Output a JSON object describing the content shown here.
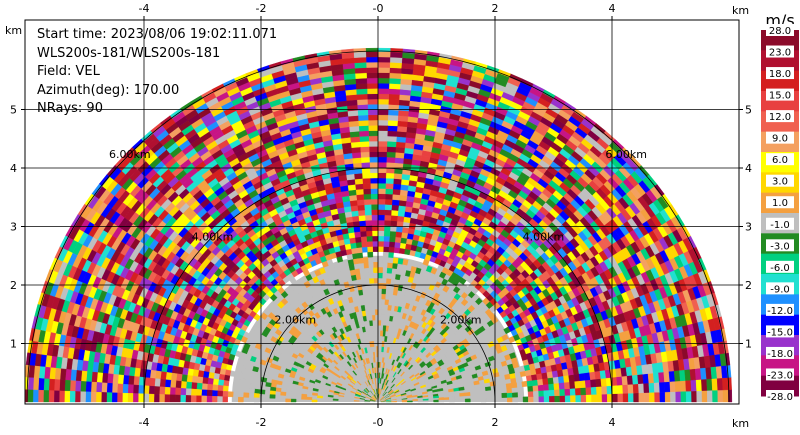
{
  "info": {
    "start_time": "Start time: 2023/08/06 19:02:11.071",
    "instrument": "WLS200s-181/WLS200s-181",
    "field": "Field: VEL",
    "azimuth": "Azimuth(deg): 170.00",
    "nrays": "NRays: 90"
  },
  "chart_data": {
    "type": "heatmap",
    "title": "",
    "xlabel": "km",
    "ylabel": "km",
    "x_ticks": [
      -4,
      -2,
      0,
      2,
      4
    ],
    "y_ticks": [
      1,
      2,
      3,
      4,
      5
    ],
    "x_tick_labels": [
      "-4",
      "-2",
      "-0",
      "2",
      "4"
    ],
    "y_tick_labels": [
      "1",
      "2",
      "3",
      "4",
      "5"
    ],
    "xlim": [
      -6.05,
      6.05
    ],
    "ylim": [
      0,
      5.95
    ],
    "grid": true,
    "range_rings_km": [
      2.0,
      4.0,
      6.0
    ],
    "range_ring_labels": [
      "2.00km",
      "4.00km",
      "6.00km"
    ],
    "max_range_km": 6.05,
    "colorbar": {
      "unit": "m/s",
      "levels": [
        28.0,
        23.0,
        18.0,
        15.0,
        12.0,
        9.0,
        6.0,
        3.0,
        1.0,
        -1.0,
        -3.0,
        -6.0,
        -9.0,
        -12.0,
        -15.0,
        -18.0,
        -23.0,
        -28.0
      ],
      "level_labels": [
        "28.0",
        "23.0",
        "18.0",
        "15.0",
        "12.0",
        "9.0",
        "6.0",
        "3.0",
        "1.0",
        "-1.0",
        "-3.0",
        "-6.0",
        "-9.0",
        "-12.0",
        "-15.0",
        "-18.0",
        "-23.0",
        "-28.0"
      ],
      "colors": [
        "#8b0a2a",
        "#b01030",
        "#d42020",
        "#e84040",
        "#f06050",
        "#f4a060",
        "#ffff00",
        "#ffd700",
        "#f4a040",
        "#bfbfbf",
        "#228b22",
        "#00d080",
        "#20e0d0",
        "#1e90ff",
        "#0000ff",
        "#9932cc",
        "#c71585",
        "#800040"
      ]
    },
    "regions": [
      {
        "range_km": [
          0,
          2.5
        ],
        "dominant": [
          "-1.0",
          "1.0",
          "-3.0",
          "3.0"
        ]
      },
      {
        "range_km": [
          2.5,
          6.05
        ],
        "dominant": "noise (all levels)"
      }
    ]
  }
}
